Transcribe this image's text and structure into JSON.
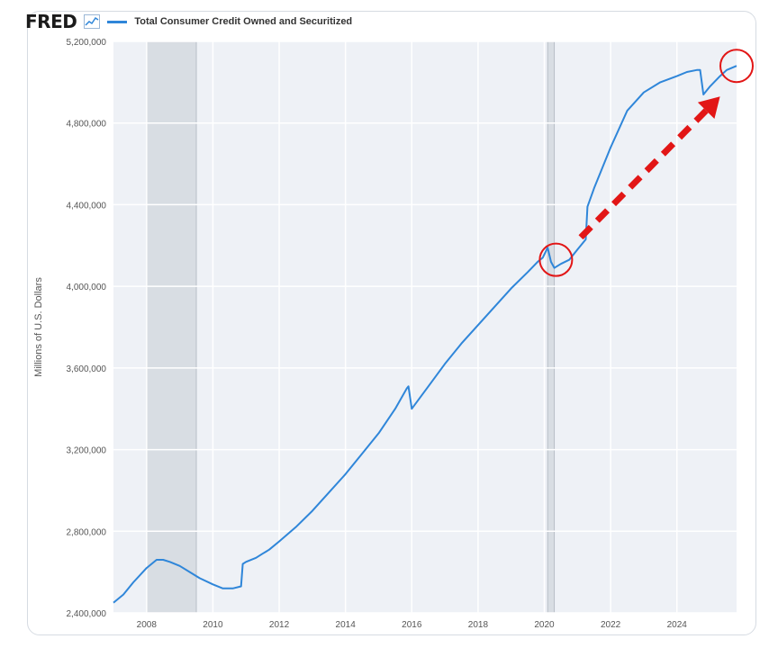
{
  "header": {
    "logo_text": "FRED",
    "legend_label": "Total Consumer Credit Owned and Securitized"
  },
  "colors": {
    "series": "#2f86d9",
    "annotation": "#e21616",
    "recession": "#d8dde3",
    "grid": "#e1e4e8",
    "plot_bg": "#eef1f6"
  },
  "chart_data": {
    "type": "line",
    "title": "Total Consumer Credit Owned and Securitized",
    "xlabel": "",
    "ylabel": "Millions of U.S. Dollars",
    "xlim": [
      2007.0,
      2025.8
    ],
    "ylim": [
      2400000,
      5200000
    ],
    "x_ticks": [
      2008,
      2010,
      2012,
      2014,
      2016,
      2018,
      2020,
      2022,
      2024
    ],
    "y_ticks": [
      2400000,
      2800000,
      3200000,
      3600000,
      4000000,
      4400000,
      4800000,
      5200000
    ],
    "y_tick_labels": [
      "2,400,000",
      "2,800,000",
      "3,200,000",
      "3,600,000",
      "4,000,000",
      "4,400,000",
      "4,800,000",
      "5,200,000"
    ],
    "recessions": [
      [
        2008.0,
        2009.5
      ],
      [
        2020.1,
        2020.3
      ]
    ],
    "series": [
      {
        "name": "Total Consumer Credit Owned and Securitized",
        "x": [
          2007.0,
          2007.3,
          2007.6,
          2008.0,
          2008.3,
          2008.5,
          2008.7,
          2009.0,
          2009.3,
          2009.6,
          2010.0,
          2010.3,
          2010.6,
          2010.85,
          2010.9,
          2011.0,
          2011.3,
          2011.5,
          2011.6,
          2011.7,
          2012.0,
          2012.5,
          2013.0,
          2013.5,
          2014.0,
          2014.5,
          2015.0,
          2015.5,
          2015.85,
          2015.9,
          2016.0,
          2016.5,
          2017.0,
          2017.5,
          2018.0,
          2018.5,
          2019.0,
          2019.5,
          2019.8,
          2019.95,
          2020.1,
          2020.2,
          2020.3,
          2020.5,
          2020.75,
          2021.0,
          2021.25,
          2021.3,
          2021.5,
          2022.0,
          2022.5,
          2023.0,
          2023.5,
          2024.0,
          2024.3,
          2024.6,
          2024.7,
          2024.8,
          2025.0,
          2025.3,
          2025.5,
          2025.8
        ],
        "values": [
          2450000,
          2490000,
          2550000,
          2620000,
          2660000,
          2660000,
          2650000,
          2630000,
          2600000,
          2570000,
          2540000,
          2520000,
          2520000,
          2530000,
          2640000,
          2650000,
          2670000,
          2690000,
          2700000,
          2710000,
          2750000,
          2820000,
          2900000,
          2990000,
          3080000,
          3180000,
          3280000,
          3400000,
          3500000,
          3510000,
          3400000,
          3510000,
          3620000,
          3720000,
          3810000,
          3900000,
          3990000,
          4070000,
          4120000,
          4140000,
          4190000,
          4120000,
          4090000,
          4110000,
          4130000,
          4180000,
          4230000,
          4390000,
          4480000,
          4680000,
          4860000,
          4950000,
          5000000,
          5030000,
          5050000,
          5060000,
          5060000,
          4940000,
          4980000,
          5030000,
          5060000,
          5080000
        ]
      }
    ],
    "annotations": {
      "circles": [
        {
          "x": 2020.35,
          "y": 4130000
        },
        {
          "x": 2025.8,
          "y": 5080000
        }
      ],
      "arrow": {
        "from": {
          "x": 2021.1,
          "y": 4240000
        },
        "to": {
          "x": 2025.3,
          "y": 4930000
        }
      }
    }
  }
}
